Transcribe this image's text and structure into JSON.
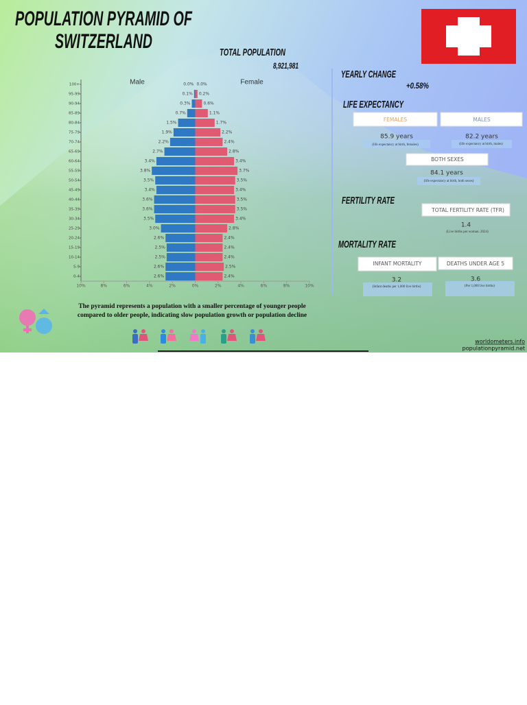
{
  "header": {
    "title_lines": [
      "POPULATION PYRAMID OF",
      "SWITZERLAND"
    ]
  },
  "stats": {
    "total_population": {
      "label": "TOTAL POPULATION",
      "value": "8,921,981"
    },
    "yearly_change": {
      "label": "YEARLY CHANGE",
      "value": "+0.58%"
    },
    "life_expectancy": {
      "label": "LIFE EXPECTANCY",
      "females": {
        "button": "FEMALES",
        "value": "85.9 years",
        "note": "(life expectancy at birth, females)"
      },
      "males": {
        "button": "MALES",
        "value": "82.2 years",
        "note": "(life expectancy at birth, males)"
      },
      "both": {
        "button": "BOTH SEXES",
        "value": "84.1 years",
        "note": "(life expectancy at birth, both sexes)"
      }
    },
    "fertility_rate": {
      "label": "FERTILITY RATE",
      "button": "TOTAL FERTILITY RATE (TFR)",
      "value": "1.4",
      "note": "(Live births per woman. 2024)"
    },
    "mortality_rate": {
      "label": "MORTALITY RATE",
      "infant": {
        "button": "INFANT MORTALITY",
        "value": "3.2",
        "note": "(Infant deaths per 1,000 live births)"
      },
      "under5": {
        "button": "DEATHS UNDER AGE 5",
        "value": "3.6",
        "note": "(Per 1,000 live births)"
      }
    }
  },
  "description_lines": [
    "The pyramid represents a population with a smaller percentage of younger people",
    "compared to older people, indicating slow population growth or population decline"
  ],
  "sources": [
    "worldometers.info",
    "populationpyramid.net"
  ],
  "chart_data": {
    "type": "pyramid",
    "categories": [
      "100+",
      "95-99",
      "90-94",
      "85-89",
      "80-84",
      "75-79",
      "70-74",
      "65-69",
      "60-64",
      "55-59",
      "50-54",
      "45-49",
      "40-44",
      "35-39",
      "30-34",
      "25-29",
      "20-24",
      "15-19",
      "10-14",
      "5-9",
      "0-4"
    ],
    "series": [
      {
        "name": "Male",
        "color": "#2f79c4",
        "values": [
          0,
          -0.1,
          -0.3,
          -0.7,
          -1.5,
          -1.9,
          -2.2,
          -2.7,
          -3.4,
          -3.8,
          -3.5,
          -3.4,
          -3.6,
          -3.6,
          -3.5,
          -3.0,
          -2.6,
          -2.5,
          -2.5,
          -2.6,
          -2.6
        ],
        "value_labels": [
          "0.0%",
          "0.1%",
          "0.3%",
          "0.7%",
          "1.5%",
          "1.9%",
          "2.2%",
          "2.7%",
          "3.4%",
          "3.8%",
          "3.5%",
          "3.4%",
          "3.6%",
          "3.6%",
          "3.5%",
          "3.0%",
          "2.6%",
          "2.5%",
          "2.5%",
          "2.6%",
          "2.6%"
        ]
      },
      {
        "name": "Female",
        "color": "#e05a72",
        "values": [
          0.0,
          0.2,
          0.6,
          1.1,
          1.7,
          2.2,
          2.4,
          2.8,
          3.4,
          3.7,
          3.5,
          3.4,
          3.5,
          3.5,
          3.4,
          2.8,
          2.4,
          2.4,
          2.4,
          2.5,
          2.4
        ],
        "value_labels": [
          "0.0%",
          "0.2%",
          "0.6%",
          "1.1%",
          "1.7%",
          "2.2%",
          "2.4%",
          "2.8%",
          "3.4%",
          "3.7%",
          "3.5%",
          "3.4%",
          "3.5%",
          "3.5%",
          "3.4%",
          "2.8%",
          "2.4%",
          "2.4%",
          "2.4%",
          "2.5%",
          "2.4%"
        ]
      }
    ],
    "xlim": [
      -10,
      10
    ],
    "xticks": [
      {
        "value": -10,
        "label": "10%"
      },
      {
        "value": -8,
        "label": "8%"
      },
      {
        "value": -6,
        "label": "6%"
      },
      {
        "value": -4,
        "label": "4%"
      },
      {
        "value": -2,
        "label": "2%"
      },
      {
        "value": 0,
        "label": "0%"
      },
      {
        "value": 2,
        "label": "2%"
      },
      {
        "value": 4,
        "label": "4%"
      },
      {
        "value": 6,
        "label": "6%"
      },
      {
        "value": 8,
        "label": "8%"
      },
      {
        "value": 10,
        "label": "10%"
      }
    ]
  }
}
